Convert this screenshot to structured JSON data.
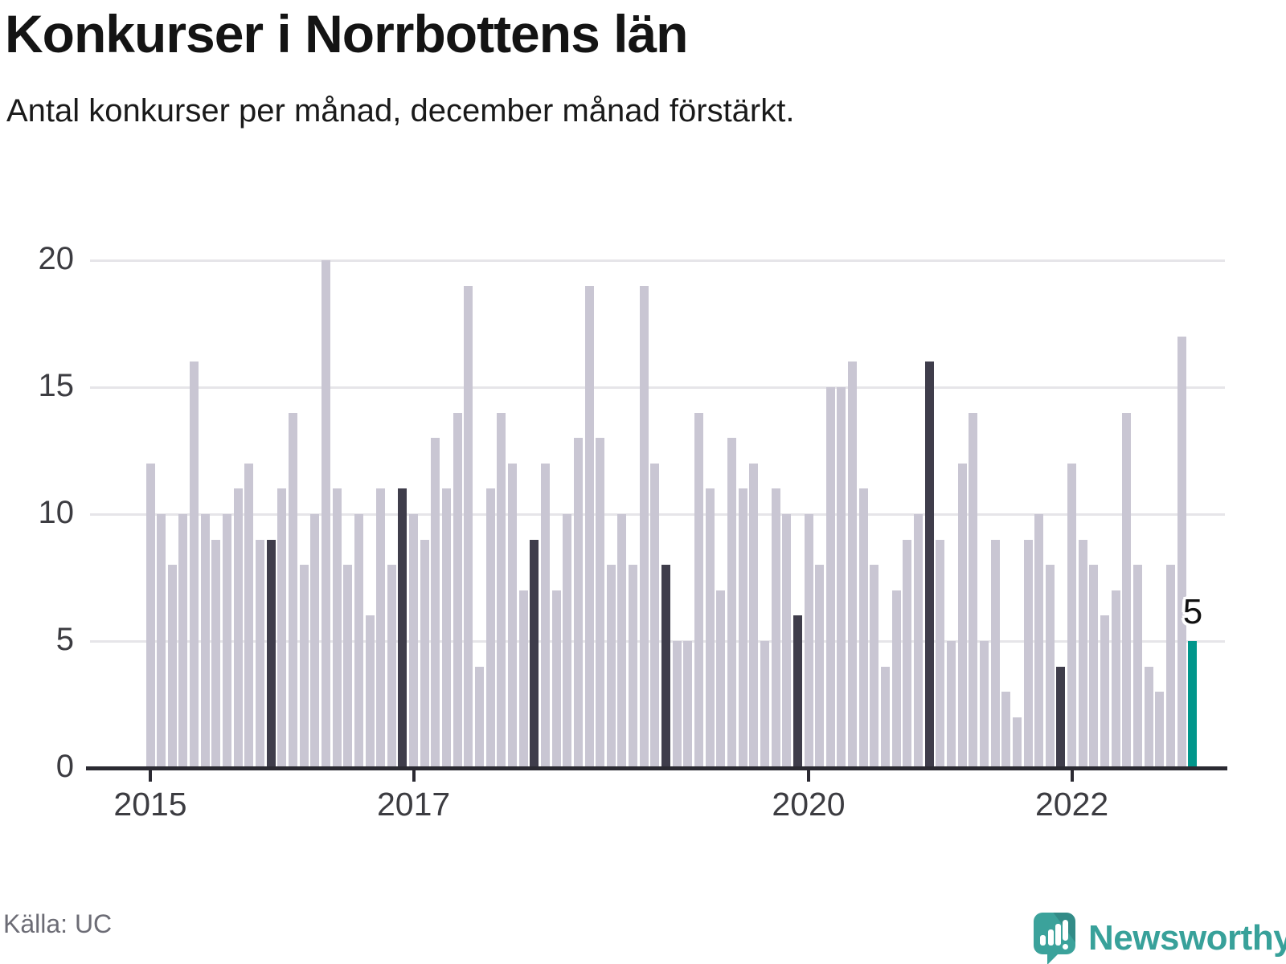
{
  "header": {
    "title": "Konkurser i Norrbottens län",
    "subtitle": "Antal konkurser per månad, december månad förstärkt."
  },
  "annotation": {
    "last_value_label": "5"
  },
  "footer": {
    "source": "Källa: UC",
    "brand": "Newsworthy"
  },
  "colors": {
    "bar": "#c9c6d3",
    "december_bar": "#3f3d4b",
    "highlight_bar": "#00968b",
    "grid": "#e6e5e9",
    "axis": "#2b2a32",
    "tick_text": "#3c3c41",
    "muted_text": "#6c6c75",
    "brand_teal": "#38a19a"
  },
  "chart_data": {
    "type": "bar",
    "title": "Konkurser i Norrbottens län",
    "subtitle": "Antal konkurser per månad, december månad förstärkt.",
    "ylabel": "",
    "xlabel": "",
    "ylim": [
      0,
      20
    ],
    "y_ticks": [
      0,
      5,
      10,
      15,
      20
    ],
    "grid": "horizontal",
    "start_month": "2015-01",
    "end_month": "2022-12",
    "december_emphasized": true,
    "latest_month_highlighted": true,
    "latest_value": 5,
    "x_ticks": [
      {
        "label": "2015",
        "month_index": 0
      },
      {
        "label": "2017",
        "month_index": 24
      },
      {
        "label": "2020",
        "month_index": 60
      },
      {
        "label": "2022",
        "month_index": 84
      }
    ],
    "series": [
      {
        "name": "Antal konkurser per månad",
        "values": [
          12,
          10,
          8,
          10,
          16,
          10,
          9,
          10,
          11,
          12,
          9,
          9,
          11,
          14,
          8,
          10,
          20,
          11,
          8,
          10,
          6,
          11,
          8,
          11,
          10,
          9,
          13,
          11,
          14,
          19,
          4,
          11,
          14,
          12,
          7,
          9,
          12,
          7,
          10,
          13,
          19,
          13,
          8,
          10,
          8,
          19,
          12,
          8,
          5,
          5,
          14,
          11,
          7,
          13,
          11,
          12,
          5,
          11,
          10,
          6,
          10,
          8,
          15,
          15,
          16,
          11,
          8,
          4,
          7,
          9,
          10,
          16,
          9,
          5,
          12,
          14,
          5,
          9,
          3,
          2,
          9,
          10,
          8,
          4,
          12,
          9,
          8,
          6,
          7,
          14,
          8,
          4,
          3,
          8,
          17,
          5
        ]
      }
    ]
  }
}
